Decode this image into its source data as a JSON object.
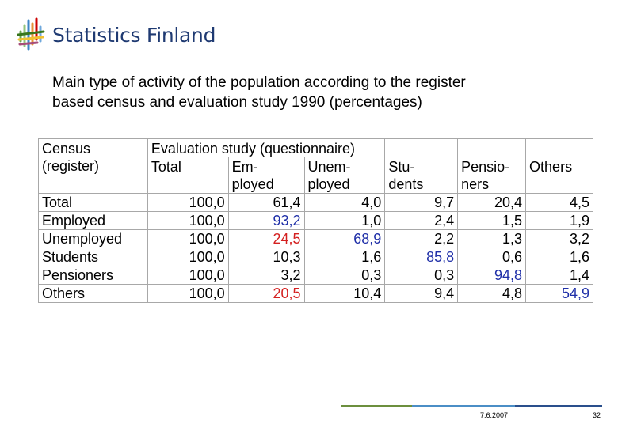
{
  "header": {
    "logo_text": "Statistics Finland",
    "logo_icon": "statistics-finland-logo-icon"
  },
  "title_lines": [
    "Main type of activity of the population according to the register",
    "based census and evaluation study 1990 (percentages)"
  ],
  "table": {
    "corner_header": [
      "Census",
      "(register)"
    ],
    "group_header": "Evaluation study (questionnaire)",
    "column_headers": [
      [
        "Total",
        ""
      ],
      [
        "Em-",
        "ployed"
      ],
      [
        "Unem-",
        "ployed"
      ],
      [
        "Stu-",
        "dents"
      ],
      [
        "Pensio-",
        "ners"
      ],
      [
        "Others",
        ""
      ]
    ],
    "rows": [
      {
        "label": "Total",
        "values": [
          "100,0",
          "61,4",
          "4,0",
          "9,7",
          "20,4",
          "4,5"
        ],
        "highlight": [
          "",
          "",
          "",
          "",
          "",
          ""
        ]
      },
      {
        "label": "Employed",
        "values": [
          "100,0",
          "93,2",
          "1,0",
          "2,4",
          "1,5",
          "1,9"
        ],
        "highlight": [
          "",
          "blue",
          "",
          "",
          "",
          ""
        ]
      },
      {
        "label": "Unemployed",
        "values": [
          "100,0",
          "24,5",
          "68,9",
          "2,2",
          "1,3",
          "3,2"
        ],
        "highlight": [
          "",
          "red",
          "blue",
          "",
          "",
          ""
        ]
      },
      {
        "label": "Students",
        "values": [
          "100,0",
          "10,3",
          "1,6",
          "85,8",
          "0,6",
          "1,6"
        ],
        "highlight": [
          "",
          "",
          "",
          "blue",
          "",
          ""
        ]
      },
      {
        "label": "Pensioners",
        "values": [
          "100,0",
          "3,2",
          "0,3",
          "0,3",
          "94,8",
          "1,4"
        ],
        "highlight": [
          "",
          "",
          "",
          "",
          "blue",
          ""
        ]
      },
      {
        "label": "Others",
        "values": [
          "100,0",
          "20,5",
          "10,4",
          "9,4",
          "4,8",
          "54,9"
        ],
        "highlight": [
          "",
          "red",
          "",
          "",
          "",
          "blue"
        ]
      }
    ]
  },
  "colors": {
    "highlight_blue": "#1f2fa8",
    "highlight_red": "#d42020",
    "logo_text": "#1f3a72"
  },
  "footer": {
    "date": "7.6.2007",
    "page": "32"
  }
}
